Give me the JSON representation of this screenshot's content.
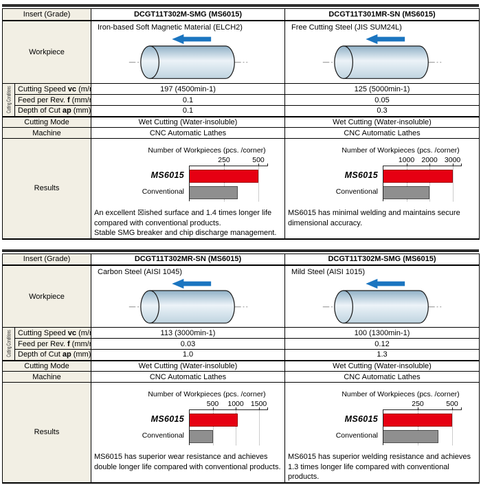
{
  "colors": {
    "red": "#e60012",
    "gray": "#8f8f8f",
    "blue": "#1b75c0",
    "beige": "#f2efe4",
    "bar": "#2f2f2f"
  },
  "labels": {
    "insert_grade": "Insert (Grade)",
    "workpiece": "Workpiece",
    "cutting_conditions": "Cutting Conditions",
    "cutting_speed": {
      "pre": "Cutting Speed ",
      "var": "vc",
      "post": " (m/min)"
    },
    "feed": {
      "pre": "Feed per Rev. ",
      "var": "f",
      "post": " (mm/rev)"
    },
    "depth": {
      "pre": "Depth of Cut ",
      "var": "ap",
      "post": " (mm)"
    },
    "cutting_mode": "Cutting Mode",
    "machine": "Machine",
    "results": "Results"
  },
  "tables": [
    {
      "columns": [
        {
          "title": "DCGT11T302M-SMG (MS6015)",
          "workpiece": "Iron-based Soft Magnetic Material (ELCH2)",
          "cutting_speed": "197 (4500min-1)",
          "feed": "0.1",
          "depth": "0.1",
          "cutting_mode": "Wet Cutting  (Water-insoluble)",
          "machine": "CNC Automatic Lathes",
          "result_text": "An excellent ☒ished surface and 1.4 times longer life compared with conventional products.\nStable SMG breaker and chip discharge management.",
          "chart": {
            "type": "bar",
            "title": "Number of Workpieces (pcs. /corner)",
            "ticks": [
              250,
              500
            ],
            "axis_max": 570,
            "series": [
              {
                "name": "MS6015",
                "value": 500
              },
              {
                "name": "Conventional",
                "value": 350
              }
            ]
          }
        },
        {
          "title": "DCGT11T301MR-SN (MS6015)",
          "workpiece": "Free Cutting Steel (JIS SUM24L)",
          "cutting_speed": "125 (5000min-1)",
          "feed": "0.05",
          "depth": "0.3",
          "cutting_mode": "Wet Cutting  (Water-insoluble)",
          "machine": "CNC Automatic Lathes",
          "result_text": "MS6015 has minimal welding and maintains secure dimensional accuracy.",
          "chart": {
            "type": "bar",
            "title": "Number of Workpieces (pcs. /corner)",
            "ticks": [
              1000,
              2000,
              3000
            ],
            "axis_max": 3400,
            "series": [
              {
                "name": "MS6015",
                "value": 3000
              },
              {
                "name": "Conventional",
                "value": 2000
              }
            ]
          }
        }
      ]
    },
    {
      "columns": [
        {
          "title": "DCGT11T302MR-SN (MS6015)",
          "workpiece": "Carbon Steel (AISI 1045)",
          "cutting_speed": "113 (3000min-1)",
          "feed": "0.03",
          "depth": "1.0",
          "cutting_mode": "Wet Cutting  (Water-insoluble)",
          "machine": "CNC Automatic Lathes",
          "result_text": "MS6015 has superior wear resistance and achieves double longer life compared with conventional products.",
          "chart": {
            "type": "bar",
            "title": "Number of Workpieces (pcs. /corner)",
            "ticks": [
              500,
              1000,
              1500
            ],
            "axis_max": 1700,
            "series": [
              {
                "name": "MS6015",
                "value": 1050
              },
              {
                "name": "Conventional",
                "value": 500
              }
            ]
          }
        },
        {
          "title": "DCGT11T302M-SMG (MS6015)",
          "workpiece": "Mild Steel (AISI 1015)",
          "cutting_speed": "100 (1300min-1)",
          "feed": "0.12",
          "depth": "1.3",
          "cutting_mode": "Wet Cutting  (Water-insoluble)",
          "machine": "CNC Automatic Lathes",
          "result_text": "MS6015 has superior welding resistance and achieves 1.3 times longer life compared with conventional products.",
          "chart": {
            "type": "bar",
            "title": "Number of Workpieces (pcs. /corner)",
            "ticks": [
              250,
              500
            ],
            "axis_max": 570,
            "series": [
              {
                "name": "MS6015",
                "value": 500
              },
              {
                "name": "Conventional",
                "value": 400
              }
            ]
          }
        }
      ]
    }
  ]
}
